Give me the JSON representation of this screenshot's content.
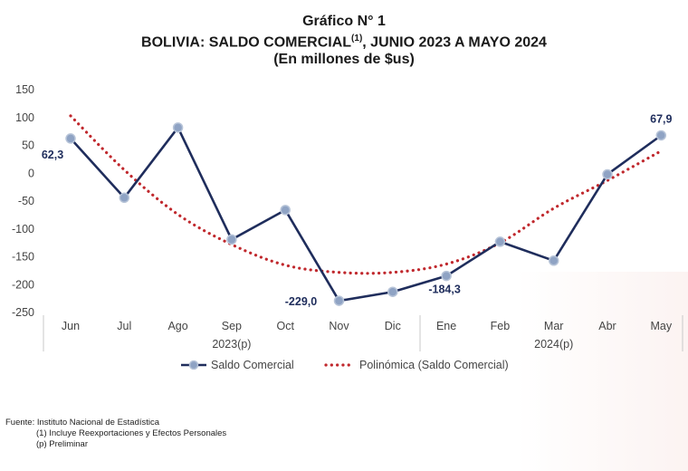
{
  "title": {
    "line1": "Gráfico N° 1",
    "line2_main": "BOLIVIA: SALDO COMERCIAL",
    "line2_sup": "(1)",
    "line2_tail": ", JUNIO 2023 A  MAYO 2024",
    "line3": "(En millones de $us)"
  },
  "chart_data": {
    "type": "line",
    "categories": [
      "Jun",
      "Jul",
      "Ago",
      "Sep",
      "Oct",
      "Nov",
      "Dic",
      "Ene",
      "Feb",
      "Mar",
      "Abr",
      "May"
    ],
    "year_groups": [
      {
        "label": "2023(p)",
        "start": 0,
        "end": 6
      },
      {
        "label": "2024(p)",
        "start": 7,
        "end": 11
      }
    ],
    "ylim": [
      -250,
      150
    ],
    "yticks": [
      "150",
      "100",
      "50",
      "0",
      "-50",
      "-100",
      "-150",
      "-200",
      "-250"
    ],
    "series": [
      {
        "name": "Saldo Comercial",
        "values": [
          62.3,
          -44,
          82,
          -119,
          -66,
          -229.0,
          -213,
          -184.3,
          -123,
          -157,
          -2,
          67.9
        ],
        "color": "#1f2d5c"
      },
      {
        "name": "Polinómica (Saldo Comercial)",
        "values": [
          103,
          6,
          -74,
          -128,
          -165,
          -178,
          -178,
          -163,
          -125,
          -63,
          -13,
          40
        ],
        "color": "#c0282d",
        "style": "dotted"
      }
    ],
    "data_labels": [
      {
        "index": 0,
        "text": "62,3"
      },
      {
        "index": 5,
        "text": "-229,0"
      },
      {
        "index": 7,
        "text": "-184,3"
      },
      {
        "index": 11,
        "text": "67,9"
      }
    ],
    "legend_position": "bottom",
    "grid": false
  },
  "notes": {
    "source": "Fuente: Instituto Nacional de Estadística",
    "note1": "(1) Incluye Reexportaciones y Efectos Personales",
    "note2": "(p) Preliminar"
  }
}
